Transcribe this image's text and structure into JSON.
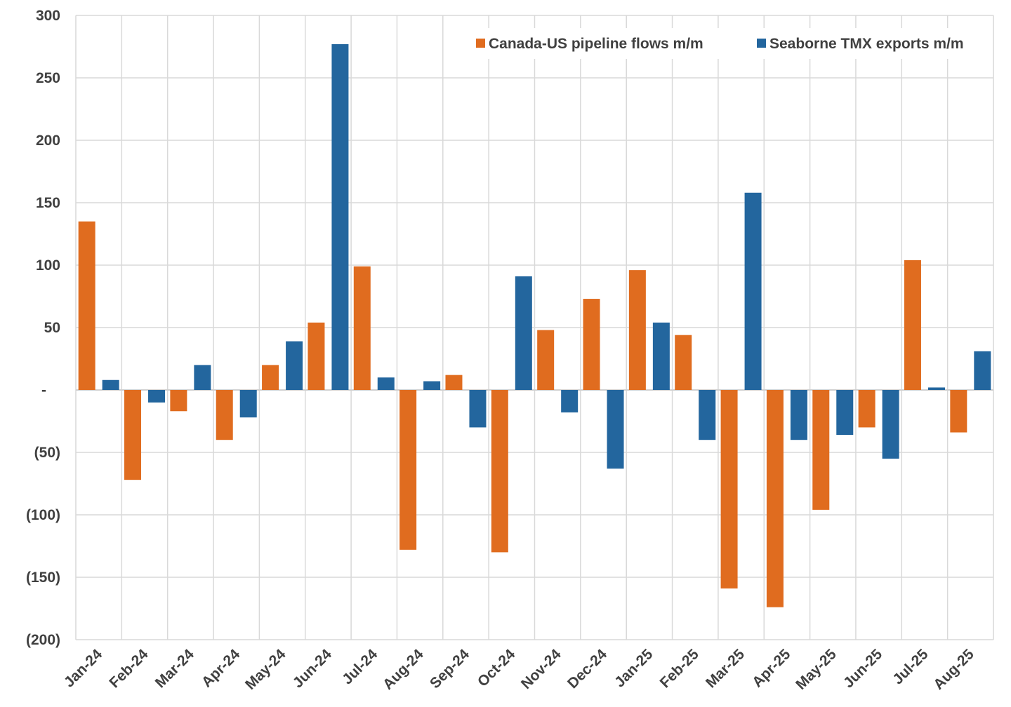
{
  "chart_data": {
    "type": "bar",
    "title": "",
    "xlabel": "",
    "ylabel": "",
    "ylim": [
      -200,
      300
    ],
    "y_ticks": [
      300,
      250,
      200,
      150,
      100,
      50,
      0,
      -50,
      -100,
      -150,
      -200
    ],
    "y_tick_labels": [
      "300",
      "250",
      "200",
      "150",
      "100",
      "50",
      "-",
      "(50)",
      "(100)",
      "(150)",
      "(200)"
    ],
    "grid": true,
    "legend_position": "top-right",
    "categories": [
      "Jan-24",
      "Feb-24",
      "Mar-24",
      "Apr-24",
      "May-24",
      "Jun-24",
      "Jul-24",
      "Aug-24",
      "Sep-24",
      "Oct-24",
      "Nov-24",
      "Dec-24",
      "Jan-25",
      "Feb-25",
      "Mar-25",
      "Apr-25",
      "May-25",
      "Jun-25",
      "Jul-25",
      "Aug-25"
    ],
    "series": [
      {
        "name": "Canada-US pipeline flows m/m",
        "color": "#E06C1F",
        "values": [
          135,
          -72,
          -17,
          -40,
          20,
          54,
          99,
          -128,
          12,
          -130,
          48,
          73,
          96,
          44,
          -159,
          -174,
          -96,
          -30,
          104,
          -34
        ]
      },
      {
        "name": "Seaborne TMX exports m/m",
        "color": "#23669E",
        "values": [
          8,
          -10,
          20,
          -22,
          39,
          277,
          10,
          7,
          -30,
          91,
          -18,
          -63,
          54,
          -40,
          158,
          -40,
          -36,
          -55,
          2,
          31
        ]
      }
    ]
  }
}
